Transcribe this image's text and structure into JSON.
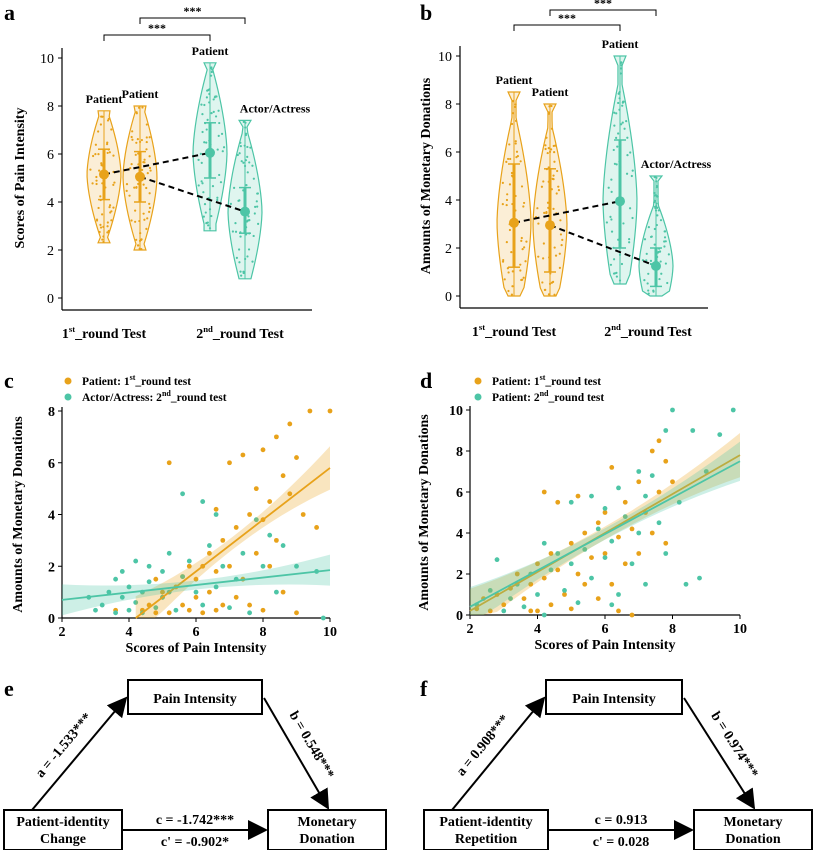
{
  "colors": {
    "orange": "#E8A21A",
    "teal": "#4DC5A6",
    "dark": "#000000"
  },
  "panel_letters": {
    "a": "a",
    "b": "b",
    "c": "c",
    "d": "d",
    "e": "e",
    "f": "f"
  },
  "chart_data": [
    {
      "id": "a",
      "type": "violin",
      "ylabel": "Scores of Pain Intensity",
      "ylim": [
        0,
        10
      ],
      "yticks": [
        0,
        2,
        4,
        6,
        8,
        10
      ],
      "groups": [
        {
          "label": "1st_round Test",
          "sup": "st",
          "base": "1",
          "rest": "_round Test"
        },
        {
          "label": "2nd_round Test",
          "sup": "nd",
          "base": "2",
          "rest": "_round Test"
        }
      ],
      "violins": [
        {
          "label": "Patient",
          "group": 0,
          "color": "orange",
          "mean": 5.15,
          "q1": 4.1,
          "q3": 6.2,
          "min": 2.3,
          "max": 7.8
        },
        {
          "label": "Patient",
          "group": 0,
          "color": "orange",
          "mean": 5.05,
          "q1": 4.0,
          "q3": 6.1,
          "min": 2.0,
          "max": 8.0
        },
        {
          "label": "Patient",
          "group": 1,
          "color": "teal",
          "mean": 6.05,
          "q1": 5.0,
          "q3": 7.3,
          "min": 2.8,
          "max": 9.8
        },
        {
          "label": "Actor/Actress",
          "group": 1,
          "color": "teal",
          "mean": 3.6,
          "q1": 2.7,
          "q3": 4.6,
          "min": 0.8,
          "max": 7.4
        }
      ],
      "significance": [
        {
          "from": 0,
          "to": 2,
          "label": "***"
        },
        {
          "from": 1,
          "to": 3,
          "label": "***"
        }
      ]
    },
    {
      "id": "b",
      "type": "violin",
      "ylabel": "Amounts of Monetary Donations",
      "ylim": [
        0,
        10
      ],
      "yticks": [
        0,
        2,
        4,
        6,
        8,
        10
      ],
      "groups": [
        {
          "label": "1st_round Test",
          "sup": "st",
          "base": "1",
          "rest": "_round Test"
        },
        {
          "label": "2nd_round Test",
          "sup": "nd",
          "base": "2",
          "rest": "_round Test"
        }
      ],
      "violins": [
        {
          "label": "Patient",
          "group": 0,
          "color": "orange",
          "mean": 3.05,
          "q1": 1.2,
          "q3": 5.5,
          "min": 0.0,
          "max": 8.5
        },
        {
          "label": "Patient",
          "group": 0,
          "color": "orange",
          "mean": 2.95,
          "q1": 1.0,
          "q3": 5.3,
          "min": 0.0,
          "max": 8.0
        },
        {
          "label": "Patient",
          "group": 1,
          "color": "teal",
          "mean": 3.95,
          "q1": 2.0,
          "q3": 6.5,
          "min": 0.5,
          "max": 10.0
        },
        {
          "label": "Actor/Actress",
          "group": 1,
          "color": "teal",
          "mean": 1.25,
          "q1": 0.4,
          "q3": 2.0,
          "min": 0.0,
          "max": 5.0
        }
      ],
      "significance": [
        {
          "from": 0,
          "to": 2,
          "label": "***"
        },
        {
          "from": 1,
          "to": 3,
          "label": "***"
        }
      ]
    },
    {
      "id": "c",
      "type": "scatter",
      "xlabel": "Scores of Pain Intensity",
      "ylabel": "Amounts of Monetary Donations",
      "xlim": [
        2,
        10
      ],
      "ylim": [
        0,
        8
      ],
      "xticks": [
        2,
        4,
        6,
        8,
        10
      ],
      "yticks": [
        0,
        2,
        4,
        6,
        8
      ],
      "legend": [
        {
          "color": "orange",
          "prefix": "Patient: 1",
          "sup": "st",
          "suffix": "_round test"
        },
        {
          "color": "teal",
          "prefix": "Actor/Actress: 2",
          "sup": "nd",
          "suffix": "_round test"
        }
      ],
      "series": [
        {
          "color": "orange",
          "fit": [
            [
              4.2,
              0.0
            ],
            [
              10,
              5.8
            ]
          ],
          "band": 0.7,
          "points": [
            [
              4.4,
              0.3
            ],
            [
              4.6,
              0.5
            ],
            [
              4.8,
              0.2
            ],
            [
              5.0,
              0.8
            ],
            [
              5.0,
              1.0
            ],
            [
              5.2,
              0.2
            ],
            [
              5.4,
              1.2
            ],
            [
              5.6,
              1.6
            ],
            [
              5.6,
              0.5
            ],
            [
              5.8,
              0.3
            ],
            [
              5.8,
              2.0
            ],
            [
              6.0,
              0.8
            ],
            [
              6.0,
              1.5
            ],
            [
              6.2,
              2.0
            ],
            [
              6.2,
              0.2
            ],
            [
              6.4,
              1.0
            ],
            [
              6.4,
              2.5
            ],
            [
              6.6,
              0.3
            ],
            [
              6.6,
              1.8
            ],
            [
              6.8,
              3.0
            ],
            [
              6.8,
              0.5
            ],
            [
              7.0,
              6.0
            ],
            [
              7.0,
              2.0
            ],
            [
              7.2,
              0.8
            ],
            [
              7.2,
              3.5
            ],
            [
              7.4,
              1.5
            ],
            [
              7.6,
              4.0
            ],
            [
              7.6,
              0.5
            ],
            [
              7.8,
              5.0
            ],
            [
              7.8,
              2.5
            ],
            [
              8.0,
              3.8
            ],
            [
              8.0,
              6.5
            ],
            [
              8.0,
              0.3
            ],
            [
              8.2,
              4.5
            ],
            [
              8.2,
              2.0
            ],
            [
              8.4,
              7.0
            ],
            [
              8.4,
              3.0
            ],
            [
              8.6,
              5.5
            ],
            [
              8.6,
              1.0
            ],
            [
              8.8,
              4.8
            ],
            [
              8.8,
              7.5
            ],
            [
              9.0,
              6.2
            ],
            [
              9.0,
              0.2
            ],
            [
              9.2,
              4.0
            ],
            [
              9.4,
              8.0
            ],
            [
              9.6,
              3.5
            ],
            [
              10.0,
              8.0
            ],
            [
              5.2,
              6.0
            ],
            [
              4.8,
              1.5
            ],
            [
              6.6,
              4.2
            ],
            [
              7.4,
              6.3
            ],
            [
              3.6,
              0.3
            ]
          ]
        },
        {
          "color": "teal",
          "fit": [
            [
              2,
              0.7
            ],
            [
              10,
              1.85
            ]
          ],
          "band": 0.5,
          "points": [
            [
              2.8,
              0.8
            ],
            [
              3.0,
              0.3
            ],
            [
              3.2,
              0.5
            ],
            [
              3.4,
              1.0
            ],
            [
              3.6,
              0.2
            ],
            [
              3.6,
              1.5
            ],
            [
              3.8,
              0.8
            ],
            [
              3.8,
              1.8
            ],
            [
              4.0,
              0.3
            ],
            [
              4.0,
              1.2
            ],
            [
              4.2,
              2.2
            ],
            [
              4.2,
              0.6
            ],
            [
              4.4,
              1.0
            ],
            [
              4.4,
              0.2
            ],
            [
              4.6,
              1.4
            ],
            [
              4.6,
              2.0
            ],
            [
              4.8,
              0.4
            ],
            [
              5.0,
              1.8
            ],
            [
              5.0,
              0.8
            ],
            [
              5.2,
              2.5
            ],
            [
              5.2,
              1.0
            ],
            [
              5.4,
              0.3
            ],
            [
              5.6,
              1.6
            ],
            [
              5.8,
              2.2
            ],
            [
              6.0,
              1.0
            ],
            [
              6.2,
              4.5
            ],
            [
              6.2,
              0.5
            ],
            [
              6.4,
              2.8
            ],
            [
              6.6,
              1.2
            ],
            [
              6.8,
              2.0
            ],
            [
              7.0,
              0.4
            ],
            [
              7.2,
              1.5
            ],
            [
              7.4,
              2.5
            ],
            [
              7.6,
              0.2
            ],
            [
              7.8,
              3.8
            ],
            [
              8.0,
              2.0
            ],
            [
              8.2,
              3.2
            ],
            [
              8.4,
              1.0
            ],
            [
              8.6,
              2.8
            ],
            [
              9.0,
              2.0
            ],
            [
              9.6,
              1.8
            ],
            [
              9.8,
              0.0
            ],
            [
              5.6,
              4.8
            ],
            [
              6.6,
              4.0
            ]
          ]
        }
      ]
    },
    {
      "id": "d",
      "type": "scatter",
      "xlabel": "Scores of Pain Intensity",
      "ylabel": "Amounts of Monetary Donations",
      "xlim": [
        2,
        10
      ],
      "ylim": [
        0,
        10
      ],
      "xticks": [
        2,
        4,
        6,
        8,
        10
      ],
      "yticks": [
        0,
        2,
        4,
        6,
        8,
        10
      ],
      "legend": [
        {
          "color": "orange",
          "prefix": "Patient: 1",
          "sup": "st",
          "suffix": "_round test"
        },
        {
          "color": "teal",
          "prefix": "Patient: 2",
          "sup": "nd",
          "suffix": "_round test"
        }
      ],
      "series": [
        {
          "color": "orange",
          "fit": [
            [
              2,
              0.2
            ],
            [
              10,
              7.8
            ]
          ],
          "band": 0.9,
          "points": [
            [
              2.2,
              0.3
            ],
            [
              2.4,
              0.8
            ],
            [
              2.6,
              0.2
            ],
            [
              2.8,
              1.0
            ],
            [
              3.0,
              0.5
            ],
            [
              3.2,
              1.3
            ],
            [
              3.4,
              2.0
            ],
            [
              3.6,
              0.8
            ],
            [
              3.8,
              1.5
            ],
            [
              4.0,
              2.5
            ],
            [
              4.0,
              0.2
            ],
            [
              4.2,
              6.0
            ],
            [
              4.2,
              1.8
            ],
            [
              4.4,
              3.0
            ],
            [
              4.4,
              0.5
            ],
            [
              4.6,
              5.5
            ],
            [
              4.6,
              2.2
            ],
            [
              4.8,
              1.0
            ],
            [
              5.0,
              3.5
            ],
            [
              5.0,
              0.3
            ],
            [
              5.2,
              2.0
            ],
            [
              5.4,
              4.0
            ],
            [
              5.4,
              1.5
            ],
            [
              5.6,
              2.8
            ],
            [
              5.8,
              0.8
            ],
            [
              5.8,
              4.5
            ],
            [
              6.0,
              3.0
            ],
            [
              6.0,
              5.0
            ],
            [
              6.2,
              7.2
            ],
            [
              6.2,
              1.5
            ],
            [
              6.4,
              3.8
            ],
            [
              6.4,
              0.2
            ],
            [
              6.6,
              5.5
            ],
            [
              6.6,
              2.5
            ],
            [
              6.8,
              4.2
            ],
            [
              7.0,
              6.5
            ],
            [
              7.0,
              3.0
            ],
            [
              7.2,
              5.0
            ],
            [
              7.4,
              8.0
            ],
            [
              7.4,
              4.0
            ],
            [
              7.6,
              8.5
            ],
            [
              7.6,
              6.0
            ],
            [
              7.8,
              7.5
            ],
            [
              7.8,
              3.5
            ],
            [
              8.0,
              6.5
            ],
            [
              5.2,
              5.8
            ],
            [
              3.8,
              0.2
            ],
            [
              6.8,
              0.0
            ]
          ]
        },
        {
          "color": "teal",
          "fit": [
            [
              2,
              0.4
            ],
            [
              10,
              7.5
            ]
          ],
          "band": 0.8,
          "points": [
            [
              2.2,
              0.5
            ],
            [
              2.6,
              1.2
            ],
            [
              2.8,
              2.7
            ],
            [
              3.0,
              0.2
            ],
            [
              3.2,
              0.8
            ],
            [
              3.4,
              1.5
            ],
            [
              3.6,
              0.4
            ],
            [
              3.8,
              2.0
            ],
            [
              4.0,
              1.0
            ],
            [
              4.2,
              3.5
            ],
            [
              4.2,
              0.0
            ],
            [
              4.4,
              2.2
            ],
            [
              4.6,
              3.0
            ],
            [
              4.8,
              1.2
            ],
            [
              5.0,
              5.5
            ],
            [
              5.0,
              2.5
            ],
            [
              5.2,
              0.6
            ],
            [
              5.4,
              3.2
            ],
            [
              5.6,
              1.8
            ],
            [
              5.8,
              4.2
            ],
            [
              6.0,
              2.8
            ],
            [
              6.0,
              5.2
            ],
            [
              6.2,
              3.6
            ],
            [
              6.4,
              6.2
            ],
            [
              6.4,
              1.0
            ],
            [
              6.6,
              4.8
            ],
            [
              6.8,
              2.5
            ],
            [
              7.0,
              7.0
            ],
            [
              7.0,
              4.0
            ],
            [
              7.2,
              5.8
            ],
            [
              7.2,
              1.5
            ],
            [
              7.4,
              6.8
            ],
            [
              7.6,
              4.5
            ],
            [
              7.8,
              9.0
            ],
            [
              7.8,
              3.0
            ],
            [
              8.0,
              10.0
            ],
            [
              8.2,
              5.5
            ],
            [
              8.4,
              1.5
            ],
            [
              8.6,
              9.0
            ],
            [
              8.8,
              1.8
            ],
            [
              9.0,
              7.0
            ],
            [
              9.4,
              8.8
            ],
            [
              9.8,
              10.0
            ],
            [
              6.2,
              0.5
            ],
            [
              5.6,
              5.8
            ]
          ]
        }
      ]
    }
  ],
  "mediation": [
    {
      "id": "e",
      "mediator": "Pain Intensity",
      "x_lines": [
        "Patient-identity",
        "Change"
      ],
      "y_lines": [
        "Monetary",
        "Donation"
      ],
      "a": "a = -1.533***",
      "b": "b = 0.548***",
      "c": "c = -1.742***",
      "cprime": "c' = -0.902*"
    },
    {
      "id": "f",
      "mediator": "Pain Intensity",
      "x_lines": [
        "Patient-identity",
        "Repetition"
      ],
      "y_lines": [
        "Monetary",
        "Donation"
      ],
      "a": "a = 0.908***",
      "b": "b = 0.974***",
      "c": "c = 0.913",
      "cprime": "c' = 0.028"
    }
  ]
}
